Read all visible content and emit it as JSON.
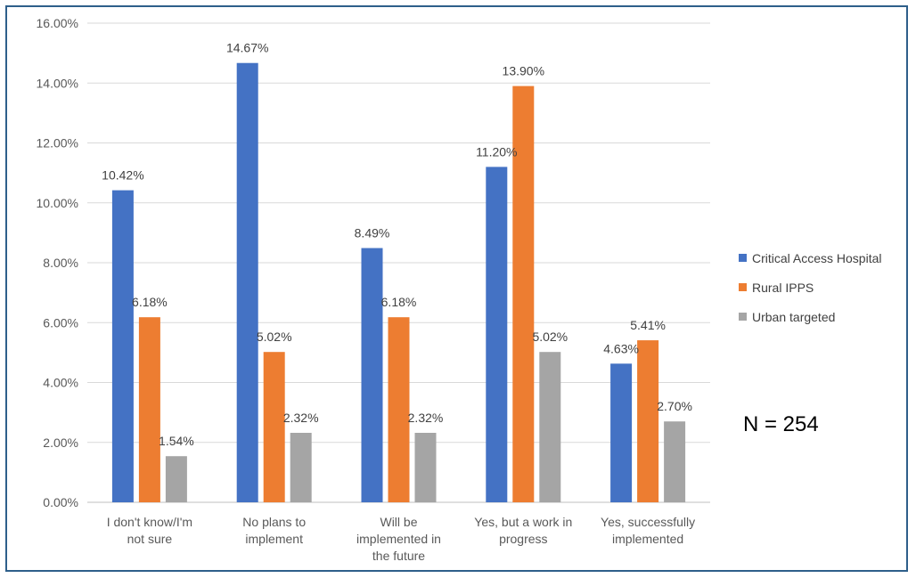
{
  "chart_data": {
    "type": "bar",
    "categories": [
      [
        "I don't know/I'm",
        "not sure"
      ],
      [
        "No plans to",
        "implement"
      ],
      [
        "Will be",
        "implemented in",
        "the future"
      ],
      [
        "Yes, but a work in",
        "progress"
      ],
      [
        "Yes, successfully",
        "implemented"
      ]
    ],
    "series": [
      {
        "name": "Critical Access Hospital",
        "color": "#4472C4",
        "values": [
          10.42,
          14.67,
          8.49,
          11.2,
          4.63
        ],
        "labels": [
          "10.42%",
          "14.67%",
          "8.49%",
          "11.20%",
          "4.63%"
        ]
      },
      {
        "name": "Rural IPPS",
        "color": "#ED7D31",
        "values": [
          6.18,
          5.02,
          6.18,
          13.9,
          5.41
        ],
        "labels": [
          "6.18%",
          "5.02%",
          "6.18%",
          "13.90%",
          "5.41%"
        ]
      },
      {
        "name": "Urban targeted",
        "color": "#A5A5A5",
        "values": [
          1.54,
          2.32,
          2.32,
          5.02,
          2.7
        ],
        "labels": [
          "1.54%",
          "2.32%",
          "2.32%",
          "5.02%",
          "2.70%"
        ]
      }
    ],
    "yticks": [
      "0.00%",
      "2.00%",
      "4.00%",
      "6.00%",
      "8.00%",
      "10.00%",
      "12.00%",
      "14.00%",
      "16.00%"
    ],
    "ylim": [
      0,
      16
    ],
    "grid": true,
    "legend_position": "right",
    "title": "",
    "xlabel": "",
    "ylabel": ""
  },
  "annotation": {
    "n_label": "N = 254"
  }
}
